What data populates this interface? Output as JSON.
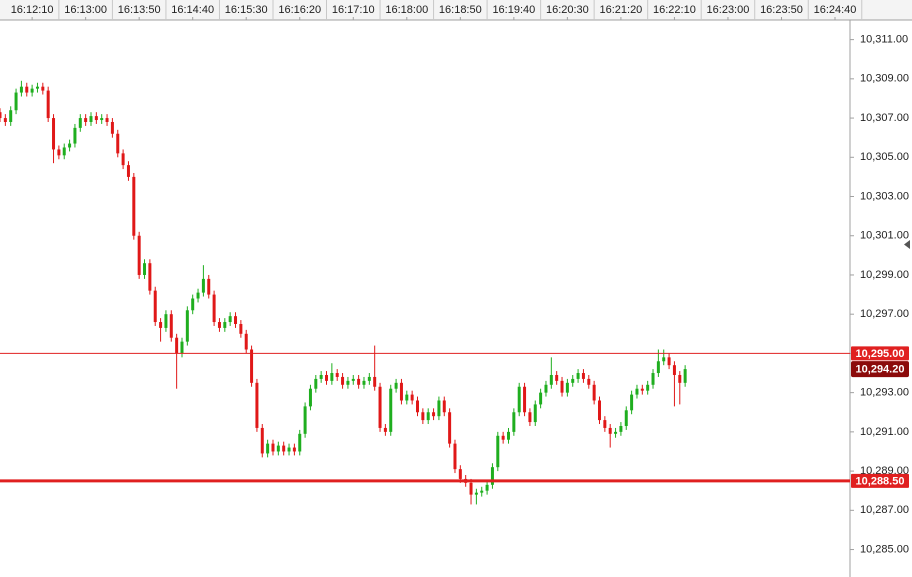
{
  "chart_data": {
    "type": "candlestick",
    "xlim": [
      "16:11:40",
      "16:24:54"
    ],
    "xticks": [
      "16:12:10",
      "16:13:00",
      "16:13:50",
      "16:14:40",
      "16:15:30",
      "16:16:20",
      "16:17:10",
      "16:18:00",
      "16:18:50",
      "16:19:40",
      "16:20:30",
      "16:21:20",
      "16:22:10",
      "16:23:00",
      "16:23:50",
      "16:24:40"
    ],
    "ylim": [
      10283.6,
      10312
    ],
    "yticks": [
      {
        "value": 10311,
        "label": "10,311.00"
      },
      {
        "value": 10309,
        "label": "10,309.00"
      },
      {
        "value": 10307,
        "label": "10,307.00"
      },
      {
        "value": 10305,
        "label": "10,305.00"
      },
      {
        "value": 10303,
        "label": "10,303.00"
      },
      {
        "value": 10301,
        "label": "10,301.00"
      },
      {
        "value": 10299,
        "label": "10,299.00"
      },
      {
        "value": 10297,
        "label": "10,297.00"
      },
      {
        "value": 10295,
        "label": "10,295.00"
      },
      {
        "value": 10293,
        "label": "10,293.00"
      },
      {
        "value": 10291,
        "label": "10,291.00"
      },
      {
        "value": 10289,
        "label": "10,289.00"
      },
      {
        "value": 10287,
        "label": "10,287.00"
      },
      {
        "value": 10285,
        "label": "10,285.00"
      }
    ],
    "up_color": "#1fae1f",
    "down_color": "#e01818",
    "hlines": [
      {
        "value": 10295,
        "label": "10,295.00",
        "color": "#e02020"
      },
      {
        "value": 10288.5,
        "label": "10,288.50",
        "color": "#e02020"
      }
    ],
    "last_price": {
      "value": 10294.2,
      "label": "10,294.20",
      "color": "#8b0a0a"
    },
    "x": [
      "16:11:40",
      "16:11:45",
      "16:11:50",
      "16:11:55",
      "16:12:00",
      "16:12:05",
      "16:12:10",
      "16:12:15",
      "16:12:20",
      "16:12:25",
      "16:12:30",
      "16:12:35",
      "16:12:40",
      "16:12:45",
      "16:12:50",
      "16:12:55",
      "16:13:00",
      "16:13:05",
      "16:13:10",
      "16:13:15",
      "16:13:20",
      "16:13:25",
      "16:13:30",
      "16:13:35",
      "16:13:40",
      "16:13:45",
      "16:13:50",
      "16:13:55",
      "16:14:00",
      "16:14:05",
      "16:14:10",
      "16:14:15",
      "16:14:20",
      "16:14:25",
      "16:14:30",
      "16:14:35",
      "16:14:40",
      "16:14:45",
      "16:14:50",
      "16:14:55",
      "16:15:00",
      "16:15:05",
      "16:15:10",
      "16:15:15",
      "16:15:20",
      "16:15:25",
      "16:15:30",
      "16:15:35",
      "16:15:40",
      "16:15:45",
      "16:15:50",
      "16:15:55",
      "16:16:00",
      "16:16:05",
      "16:16:10",
      "16:16:15",
      "16:16:20",
      "16:16:25",
      "16:16:30",
      "16:16:35",
      "16:16:40",
      "16:16:45",
      "16:16:50",
      "16:16:55",
      "16:17:00",
      "16:17:05",
      "16:17:10",
      "16:17:15",
      "16:17:20",
      "16:17:25",
      "16:17:30",
      "16:17:35",
      "16:17:40",
      "16:17:45",
      "16:17:50",
      "16:17:55",
      "16:18:00",
      "16:18:05",
      "16:18:10",
      "16:18:15",
      "16:18:20",
      "16:18:25",
      "16:18:30",
      "16:18:35",
      "16:18:40",
      "16:18:45",
      "16:18:50",
      "16:18:55",
      "16:19:00",
      "16:19:05",
      "16:19:10",
      "16:19:15",
      "16:19:20",
      "16:19:25",
      "16:19:30",
      "16:19:35",
      "16:19:40",
      "16:19:45",
      "16:19:50",
      "16:19:55",
      "16:20:00",
      "16:20:05",
      "16:20:10",
      "16:20:15",
      "16:20:20",
      "16:20:25",
      "16:20:30",
      "16:20:35",
      "16:20:40",
      "16:20:45",
      "16:20:50",
      "16:20:55",
      "16:21:00",
      "16:21:05",
      "16:21:10",
      "16:21:15",
      "16:21:20",
      "16:21:25",
      "16:21:30",
      "16:21:35",
      "16:21:40",
      "16:21:45",
      "16:21:50",
      "16:21:55",
      "16:22:00",
      "16:22:05",
      "16:22:10",
      "16:22:15",
      "16:22:20"
    ],
    "ohlc": [
      [
        10307.3,
        10307.5,
        10306.8,
        10307.0
      ],
      [
        10307.0,
        10307.2,
        10306.6,
        10306.8
      ],
      [
        10306.8,
        10307.6,
        10306.6,
        10307.4
      ],
      [
        10307.4,
        10308.5,
        10307.2,
        10308.3
      ],
      [
        10308.3,
        10308.9,
        10308.1,
        10308.6
      ],
      [
        10308.6,
        10308.8,
        10308.1,
        10308.3
      ],
      [
        10308.3,
        10308.7,
        10308.1,
        10308.5
      ],
      [
        10308.5,
        10308.8,
        10308.3,
        10308.6
      ],
      [
        10308.6,
        10308.8,
        10308.2,
        10308.4
      ],
      [
        10308.4,
        10308.6,
        10306.8,
        10307.0
      ],
      [
        10307.0,
        10307.2,
        10304.7,
        10305.4
      ],
      [
        10305.4,
        10305.6,
        10304.9,
        10305.1
      ],
      [
        10305.1,
        10305.7,
        10304.9,
        10305.5
      ],
      [
        10305.5,
        10305.9,
        10305.3,
        10305.7
      ],
      [
        10305.7,
        10306.7,
        10305.5,
        10306.5
      ],
      [
        10306.5,
        10307.2,
        10306.3,
        10307.0
      ],
      [
        10307.0,
        10307.2,
        10306.6,
        10306.8
      ],
      [
        10306.8,
        10307.3,
        10306.6,
        10307.1
      ],
      [
        10307.1,
        10307.3,
        10306.7,
        10306.9
      ],
      [
        10306.9,
        10307.2,
        10306.7,
        10307.0
      ],
      [
        10307.0,
        10307.2,
        10306.6,
        10306.8
      ],
      [
        10306.8,
        10307.0,
        10306.0,
        10306.2
      ],
      [
        10306.2,
        10306.4,
        10305.0,
        10305.2
      ],
      [
        10305.2,
        10305.4,
        10304.4,
        10304.6
      ],
      [
        10304.6,
        10304.8,
        10303.8,
        10304.0
      ],
      [
        10304.0,
        10304.2,
        10300.8,
        10301.0
      ],
      [
        10301.0,
        10301.2,
        10298.8,
        10299.0
      ],
      [
        10299.0,
        10299.8,
        10298.8,
        10299.6
      ],
      [
        10299.6,
        10299.8,
        10298.0,
        10298.2
      ],
      [
        10298.2,
        10298.4,
        10296.4,
        10296.6
      ],
      [
        10296.6,
        10296.8,
        10295.6,
        10296.3
      ],
      [
        10296.3,
        10297.2,
        10296.1,
        10297.0
      ],
      [
        10297.0,
        10297.2,
        10295.6,
        10295.8
      ],
      [
        10295.8,
        10296.0,
        10293.2,
        10295.0
      ],
      [
        10295.0,
        10295.8,
        10294.8,
        10295.6
      ],
      [
        10295.6,
        10297.4,
        10295.4,
        10297.2
      ],
      [
        10297.2,
        10298.0,
        10297.0,
        10297.8
      ],
      [
        10297.8,
        10298.3,
        10297.6,
        10298.1
      ],
      [
        10298.1,
        10299.5,
        10297.9,
        10298.8
      ],
      [
        10298.8,
        10299.0,
        10297.8,
        10298.0
      ],
      [
        10298.0,
        10298.2,
        10296.4,
        10296.6
      ],
      [
        10296.6,
        10296.8,
        10296.1,
        10296.3
      ],
      [
        10296.3,
        10296.8,
        10296.1,
        10296.6
      ],
      [
        10296.6,
        10297.1,
        10296.4,
        10296.9
      ],
      [
        10296.9,
        10297.1,
        10296.3,
        10296.5
      ],
      [
        10296.5,
        10296.7,
        10295.8,
        10296.0
      ],
      [
        10296.0,
        10296.2,
        10295.0,
        10295.2
      ],
      [
        10295.2,
        10295.4,
        10293.3,
        10293.5
      ],
      [
        10293.5,
        10293.7,
        10291.0,
        10291.2
      ],
      [
        10291.2,
        10291.4,
        10289.7,
        10289.9
      ],
      [
        10289.9,
        10290.6,
        10289.7,
        10290.4
      ],
      [
        10290.4,
        10290.6,
        10289.8,
        10290.0
      ],
      [
        10290.0,
        10290.5,
        10289.8,
        10290.3
      ],
      [
        10290.3,
        10290.5,
        10289.8,
        10290.0
      ],
      [
        10290.0,
        10290.4,
        10289.8,
        10290.2
      ],
      [
        10290.2,
        10290.4,
        10289.8,
        10290.0
      ],
      [
        10290.0,
        10291.1,
        10289.8,
        10290.9
      ],
      [
        10290.9,
        10292.5,
        10290.7,
        10292.3
      ],
      [
        10292.3,
        10293.4,
        10292.1,
        10293.2
      ],
      [
        10293.2,
        10293.9,
        10293.0,
        10293.7
      ],
      [
        10293.7,
        10294.1,
        10293.5,
        10293.9
      ],
      [
        10293.9,
        10294.1,
        10293.4,
        10293.6
      ],
      [
        10293.6,
        10294.5,
        10293.4,
        10294.0
      ],
      [
        10294.0,
        10294.2,
        10293.6,
        10293.8
      ],
      [
        10293.8,
        10294.0,
        10293.2,
        10293.4
      ],
      [
        10293.4,
        10293.8,
        10293.2,
        10293.6
      ],
      [
        10293.6,
        10293.9,
        10293.4,
        10293.7
      ],
      [
        10293.7,
        10293.9,
        10293.2,
        10293.4
      ],
      [
        10293.4,
        10293.8,
        10293.2,
        10293.6
      ],
      [
        10293.6,
        10294.0,
        10293.4,
        10293.8
      ],
      [
        10293.8,
        10295.4,
        10293.1,
        10293.3
      ],
      [
        10293.3,
        10293.5,
        10291.0,
        10291.2
      ],
      [
        10291.2,
        10291.4,
        10290.8,
        10291.0
      ],
      [
        10291.0,
        10293.4,
        10290.8,
        10293.2
      ],
      [
        10293.2,
        10293.7,
        10293.0,
        10293.5
      ],
      [
        10293.5,
        10293.7,
        10292.4,
        10292.6
      ],
      [
        10292.6,
        10293.1,
        10292.4,
        10292.9
      ],
      [
        10292.9,
        10293.1,
        10292.4,
        10292.6
      ],
      [
        10292.6,
        10292.8,
        10291.8,
        10292.0
      ],
      [
        10292.0,
        10292.2,
        10291.4,
        10291.6
      ],
      [
        10291.6,
        10292.2,
        10291.4,
        10292.0
      ],
      [
        10292.0,
        10292.2,
        10291.6,
        10291.8
      ],
      [
        10291.8,
        10292.8,
        10291.6,
        10292.6
      ],
      [
        10292.6,
        10292.8,
        10291.8,
        10292.0
      ],
      [
        10292.0,
        10292.2,
        10290.2,
        10290.4
      ],
      [
        10290.4,
        10290.6,
        10288.9,
        10289.1
      ],
      [
        10289.1,
        10289.3,
        10288.4,
        10288.6
      ],
      [
        10288.6,
        10288.8,
        10288.2,
        10288.4
      ],
      [
        10288.4,
        10288.6,
        10287.3,
        10287.8
      ],
      [
        10287.8,
        10288.1,
        10287.3,
        10287.9
      ],
      [
        10287.9,
        10288.2,
        10287.7,
        10288.0
      ],
      [
        10288.0,
        10288.5,
        10287.8,
        10288.3
      ],
      [
        10288.3,
        10289.4,
        10288.1,
        10289.2
      ],
      [
        10289.2,
        10291.0,
        10289.0,
        10290.8
      ],
      [
        10290.8,
        10291.0,
        10290.4,
        10290.6
      ],
      [
        10290.6,
        10291.2,
        10290.4,
        10291.0
      ],
      [
        10291.0,
        10292.2,
        10290.8,
        10292.0
      ],
      [
        10292.0,
        10293.5,
        10291.8,
        10293.3
      ],
      [
        10293.3,
        10293.5,
        10291.8,
        10292.0
      ],
      [
        10292.0,
        10292.2,
        10291.3,
        10291.5
      ],
      [
        10291.5,
        10292.6,
        10291.3,
        10292.4
      ],
      [
        10292.4,
        10293.2,
        10292.2,
        10293.0
      ],
      [
        10293.0,
        10293.6,
        10292.8,
        10293.4
      ],
      [
        10293.4,
        10294.8,
        10293.2,
        10293.9
      ],
      [
        10293.9,
        10294.1,
        10293.4,
        10293.6
      ],
      [
        10293.6,
        10293.8,
        10292.8,
        10293.0
      ],
      [
        10293.0,
        10293.7,
        10292.8,
        10293.5
      ],
      [
        10293.5,
        10293.9,
        10293.3,
        10293.7
      ],
      [
        10293.7,
        10294.2,
        10293.5,
        10294.0
      ],
      [
        10294.0,
        10294.2,
        10293.5,
        10293.7
      ],
      [
        10293.7,
        10293.9,
        10293.2,
        10293.4
      ],
      [
        10293.4,
        10293.6,
        10292.4,
        10292.6
      ],
      [
        10292.6,
        10292.8,
        10291.4,
        10291.6
      ],
      [
        10291.6,
        10291.8,
        10291.0,
        10291.2
      ],
      [
        10291.2,
        10291.4,
        10290.2,
        10290.9
      ],
      [
        10290.9,
        10291.2,
        10290.7,
        10291.0
      ],
      [
        10291.0,
        10291.5,
        10290.8,
        10291.3
      ],
      [
        10291.3,
        10292.3,
        10291.1,
        10292.1
      ],
      [
        10292.1,
        10293.1,
        10291.9,
        10292.9
      ],
      [
        10292.9,
        10293.4,
        10292.7,
        10293.2
      ],
      [
        10293.2,
        10293.4,
        10292.9,
        10293.1
      ],
      [
        10293.1,
        10293.6,
        10292.9,
        10293.4
      ],
      [
        10293.4,
        10294.2,
        10293.2,
        10294.0
      ],
      [
        10294.0,
        10295.2,
        10293.8,
        10294.6
      ],
      [
        10294.6,
        10295.2,
        10294.4,
        10294.8
      ],
      [
        10294.8,
        10295.0,
        10294.2,
        10294.4
      ],
      [
        10294.4,
        10294.6,
        10292.3,
        10293.9
      ],
      [
        10293.9,
        10294.1,
        10292.4,
        10293.5
      ],
      [
        10293.5,
        10294.4,
        10293.3,
        10294.2
      ]
    ]
  }
}
